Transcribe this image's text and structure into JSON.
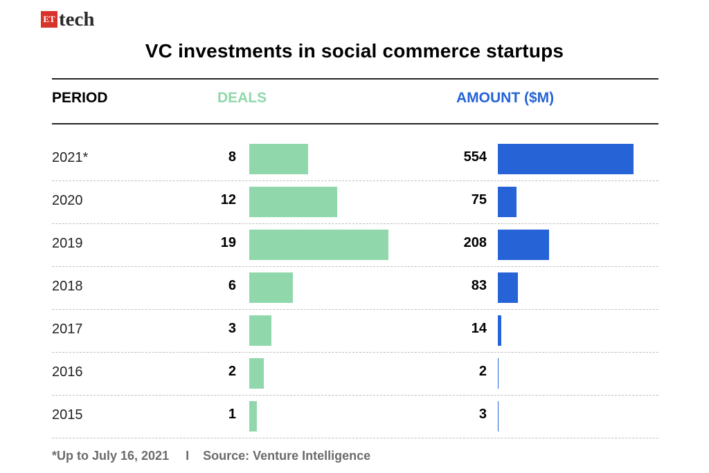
{
  "logo": {
    "badge": "ET",
    "word": "tech"
  },
  "colors": {
    "deals": "#90d8ab",
    "amount": "#2563d6"
  },
  "chart_data": {
    "type": "table",
    "title": "VC investments in social commerce startups",
    "columns": [
      "PERIOD",
      "DEALS",
      "AMOUNT ($M)"
    ],
    "rows": [
      {
        "period": "2021*",
        "deals": 8,
        "amount": 554
      },
      {
        "period": "2020",
        "deals": 12,
        "amount": 75
      },
      {
        "period": "2019",
        "deals": 19,
        "amount": 208
      },
      {
        "period": "2018",
        "deals": 6,
        "amount": 83
      },
      {
        "period": "2017",
        "deals": 3,
        "amount": 14
      },
      {
        "period": "2016",
        "deals": 2,
        "amount": 2
      },
      {
        "period": "2015",
        "deals": 1,
        "amount": 3
      }
    ],
    "deals_max": 19,
    "amount_max": 554
  },
  "footer": {
    "note": "*Up to July 16, 2021",
    "separator": "I",
    "source": "Source: Venture Intelligence"
  }
}
